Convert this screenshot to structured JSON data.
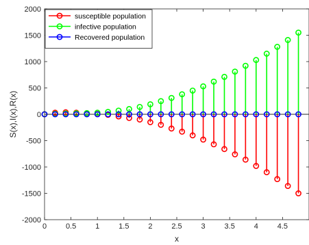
{
  "chart_data": {
    "type": "stem",
    "title": "",
    "xlabel": "x",
    "ylabel": "S(x),I(x),R(x)",
    "xlim": [
      0,
      5
    ],
    "ylim": [
      -2000,
      2000
    ],
    "xticks": [
      0,
      0.5,
      1,
      1.5,
      2,
      2.5,
      3,
      3.5,
      4,
      4.5
    ],
    "xtick_labels": [
      "0",
      "0.5",
      "1",
      "1.5",
      "2",
      "2.5",
      "3",
      "3.5",
      "4",
      "4.5"
    ],
    "yticks": [
      -2000,
      -1500,
      -1000,
      -500,
      0,
      500,
      1000,
      1500,
      2000
    ],
    "ytick_labels": [
      "-2000",
      "-1500",
      "-1000",
      "-500",
      "0",
      "500",
      "1000",
      "1500",
      "2000"
    ],
    "grid": false,
    "legend_location": "top-left",
    "x": [
      0,
      0.2,
      0.4,
      0.6,
      0.8,
      1.0,
      1.2,
      1.4,
      1.6,
      1.8,
      2.0,
      2.2,
      2.4,
      2.6,
      2.8,
      3.0,
      3.2,
      3.4,
      3.6,
      3.8,
      4.0,
      4.2,
      4.4,
      4.6,
      4.8
    ],
    "series": [
      {
        "name": "susceptible population",
        "color": "#ff0000",
        "values": [
          2,
          30,
          38,
          30,
          20,
          5,
          -10,
          -40,
          -70,
          -100,
          -150,
          -200,
          -270,
          -330,
          -400,
          -480,
          -570,
          -660,
          -760,
          -860,
          -980,
          -1100,
          -1230,
          -1360,
          -1500
        ]
      },
      {
        "name": " infective population",
        "color": "#00ff00",
        "values": [
          2,
          10,
          15,
          18,
          22,
          30,
          45,
          70,
          100,
          140,
          190,
          250,
          310,
          380,
          450,
          530,
          620,
          710,
          810,
          920,
          1030,
          1150,
          1280,
          1410,
          1550
        ]
      },
      {
        "name": "Recovered population",
        "color": "#0000ff",
        "values": [
          0,
          0,
          0,
          0,
          0,
          0,
          0,
          0,
          0,
          0,
          0,
          0,
          0,
          0,
          0,
          0,
          0,
          0,
          0,
          0,
          0,
          0,
          0,
          0,
          0
        ]
      }
    ]
  }
}
